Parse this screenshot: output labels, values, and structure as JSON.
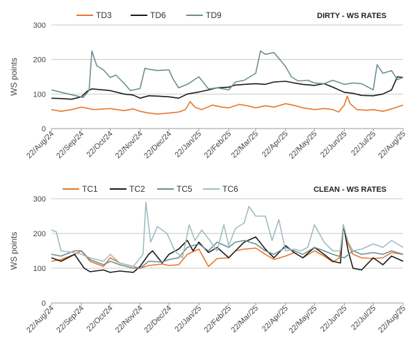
{
  "chart_data": [
    {
      "type": "line",
      "title": "DIRTY - WS RATES",
      "ylabel": "WS points",
      "ylim": [
        0,
        300
      ],
      "yticks": [
        0,
        100,
        200,
        300
      ],
      "xlim": [
        "2024-08-22",
        "2025-08-22"
      ],
      "xticks": [
        "22/Aug/24",
        "22/Sep/24",
        "22/Oct/24",
        "22/Nov/24",
        "22/Dec/24",
        "22/Jan/25",
        "22/Feb/25",
        "22/Mar/25",
        "22/Apr/25",
        "22/May/25",
        "22/Jun/25",
        "22/Jul/25",
        "22/Aug/25"
      ],
      "grid": true,
      "legend": "top-left",
      "series": [
        {
          "name": "TD3",
          "color": "#e8762c",
          "x": [
            "2024-08-22",
            "2024-09-01",
            "2024-09-12",
            "2024-09-22",
            "2024-10-05",
            "2024-10-22",
            "2024-11-05",
            "2024-11-15",
            "2024-11-22",
            "2024-12-01",
            "2024-12-10",
            "2024-12-22",
            "2025-01-01",
            "2025-01-08",
            "2025-01-13",
            "2025-01-18",
            "2025-01-25",
            "2025-02-05",
            "2025-02-15",
            "2025-02-22",
            "2025-03-05",
            "2025-03-15",
            "2025-03-22",
            "2025-04-01",
            "2025-04-10",
            "2025-04-22",
            "2025-05-01",
            "2025-05-10",
            "2025-05-22",
            "2025-06-01",
            "2025-06-10",
            "2025-06-16",
            "2025-06-22",
            "2025-06-25",
            "2025-06-28",
            "2025-07-05",
            "2025-07-15",
            "2025-07-22",
            "2025-08-01",
            "2025-08-10",
            "2025-08-22"
          ],
          "values": [
            55,
            50,
            55,
            62,
            55,
            58,
            52,
            57,
            50,
            45,
            42,
            45,
            48,
            55,
            78,
            62,
            55,
            68,
            62,
            60,
            70,
            65,
            60,
            66,
            62,
            72,
            67,
            60,
            55,
            58,
            55,
            48,
            68,
            94,
            72,
            55,
            53,
            55,
            50,
            57,
            68
          ]
        },
        {
          "name": "TD6",
          "color": "#1a1a1a",
          "x": [
            "2024-08-22",
            "2024-09-01",
            "2024-09-12",
            "2024-09-22",
            "2024-09-28",
            "2024-10-03",
            "2024-10-15",
            "2024-10-22",
            "2024-11-05",
            "2024-11-15",
            "2024-11-22",
            "2024-12-01",
            "2024-12-10",
            "2024-12-22",
            "2025-01-01",
            "2025-01-10",
            "2025-01-22",
            "2025-02-01",
            "2025-02-10",
            "2025-02-22",
            "2025-03-01",
            "2025-03-10",
            "2025-03-22",
            "2025-04-01",
            "2025-04-10",
            "2025-04-22",
            "2025-05-01",
            "2025-05-10",
            "2025-05-22",
            "2025-06-01",
            "2025-06-10",
            "2025-06-22",
            "2025-07-01",
            "2025-07-10",
            "2025-07-22",
            "2025-08-01",
            "2025-08-10",
            "2025-08-16",
            "2025-08-22"
          ],
          "values": [
            88,
            87,
            85,
            92,
            108,
            115,
            112,
            110,
            100,
            97,
            88,
            95,
            94,
            92,
            88,
            100,
            106,
            112,
            118,
            120,
            126,
            128,
            130,
            128,
            135,
            137,
            132,
            128,
            125,
            130,
            120,
            105,
            102,
            96,
            95,
            100,
            112,
            150,
            148
          ]
        },
        {
          "name": "TD9",
          "color": "#6d8e91",
          "x": [
            "2024-08-22",
            "2024-09-01",
            "2024-09-12",
            "2024-09-24",
            "2024-09-30",
            "2024-10-03",
            "2024-10-08",
            "2024-10-15",
            "2024-10-22",
            "2024-10-28",
            "2024-11-05",
            "2024-11-12",
            "2024-11-22",
            "2024-11-27",
            "2024-12-01",
            "2024-12-10",
            "2024-12-22",
            "2024-12-26",
            "2025-01-01",
            "2025-01-10",
            "2025-01-22",
            "2025-02-01",
            "2025-02-10",
            "2025-02-22",
            "2025-03-01",
            "2025-03-10",
            "2025-03-22",
            "2025-03-27",
            "2025-04-01",
            "2025-04-10",
            "2025-04-22",
            "2025-04-28",
            "2025-05-05",
            "2025-05-15",
            "2025-05-22",
            "2025-06-01",
            "2025-06-10",
            "2025-06-22",
            "2025-07-01",
            "2025-07-10",
            "2025-07-22",
            "2025-07-26",
            "2025-08-01",
            "2025-08-10",
            "2025-08-16",
            "2025-08-22"
          ],
          "values": [
            112,
            105,
            98,
            90,
            110,
            225,
            182,
            170,
            148,
            155,
            132,
            110,
            116,
            175,
            172,
            168,
            170,
            145,
            118,
            128,
            150,
            115,
            118,
            112,
            135,
            140,
            160,
            225,
            215,
            220,
            180,
            150,
            138,
            140,
            132,
            130,
            140,
            128,
            132,
            130,
            112,
            185,
            160,
            168,
            142,
            148
          ]
        }
      ]
    },
    {
      "type": "line",
      "title": "CLEAN - WS RATES",
      "ylabel": "WS points",
      "ylim": [
        0,
        300
      ],
      "yticks": [
        0,
        100,
        200,
        300
      ],
      "xlim": [
        "2024-08-22",
        "2025-08-22"
      ],
      "xticks": [
        "22/Aug/24",
        "22/Sep/24",
        "22/Oct/24",
        "22/Nov/24",
        "22/Dec/24",
        "22/Jan/25",
        "22/Feb/25",
        "22/Mar/25",
        "22/Apr/25",
        "22/May/25",
        "22/Jun/25",
        "22/Jul/25",
        "22/Aug/25"
      ],
      "grid": true,
      "legend": "top-left",
      "series": [
        {
          "name": "TC1",
          "color": "#e8762c",
          "x": [
            "2024-08-22",
            "2024-09-01",
            "2024-09-15",
            "2024-09-22",
            "2024-10-01",
            "2024-10-15",
            "2024-10-22",
            "2024-11-01",
            "2024-11-15",
            "2024-11-22",
            "2024-12-01",
            "2024-12-15",
            "2024-12-22",
            "2025-01-01",
            "2025-01-10",
            "2025-01-22",
            "2025-02-01",
            "2025-02-10",
            "2025-02-22",
            "2025-03-01",
            "2025-03-10",
            "2025-03-22",
            "2025-04-01",
            "2025-04-10",
            "2025-04-22",
            "2025-05-01",
            "2025-05-10",
            "2025-05-22",
            "2025-06-01",
            "2025-06-10",
            "2025-06-17",
            "2025-06-21",
            "2025-06-26",
            "2025-07-01",
            "2025-07-10",
            "2025-07-22",
            "2025-08-01",
            "2025-08-10",
            "2025-08-22"
          ],
          "values": [
            120,
            125,
            140,
            150,
            120,
            105,
            130,
            115,
            105,
            100,
            108,
            112,
            108,
            110,
            140,
            155,
            105,
            128,
            130,
            150,
            155,
            158,
            140,
            125,
            135,
            145,
            130,
            150,
            135,
            118,
            130,
            220,
            170,
            140,
            130,
            128,
            130,
            145,
            140
          ]
        },
        {
          "name": "TC2",
          "color": "#1a1a1a",
          "x": [
            "2024-08-22",
            "2024-09-01",
            "2024-09-15",
            "2024-09-25",
            "2024-10-01",
            "2024-10-15",
            "2024-10-22",
            "2024-11-01",
            "2024-11-15",
            "2024-11-22",
            "2024-12-01",
            "2024-12-05",
            "2024-12-15",
            "2024-12-22",
            "2025-01-01",
            "2025-01-10",
            "2025-01-16",
            "2025-01-22",
            "2025-02-01",
            "2025-02-10",
            "2025-02-22",
            "2025-03-01",
            "2025-03-10",
            "2025-03-22",
            "2025-04-01",
            "2025-04-10",
            "2025-04-22",
            "2025-05-01",
            "2025-05-10",
            "2025-05-22",
            "2025-06-01",
            "2025-06-10",
            "2025-06-18",
            "2025-06-21",
            "2025-06-26",
            "2025-07-01",
            "2025-07-10",
            "2025-07-22",
            "2025-08-01",
            "2025-08-10",
            "2025-08-22"
          ],
          "values": [
            130,
            120,
            140,
            100,
            90,
            95,
            88,
            92,
            88,
            105,
            140,
            150,
            115,
            140,
            155,
            180,
            150,
            175,
            145,
            160,
            130,
            150,
            175,
            190,
            155,
            130,
            165,
            145,
            130,
            160,
            140,
            120,
            115,
            225,
            150,
            100,
            95,
            130,
            110,
            135,
            120
          ]
        },
        {
          "name": "TC5",
          "color": "#6d8e91",
          "x": [
            "2024-08-22",
            "2024-09-01",
            "2024-09-15",
            "2024-09-22",
            "2024-10-01",
            "2024-10-15",
            "2024-10-22",
            "2024-11-01",
            "2024-11-15",
            "2024-11-22",
            "2024-12-01",
            "2024-12-15",
            "2024-12-22",
            "2025-01-01",
            "2025-01-10",
            "2025-01-22",
            "2025-02-01",
            "2025-02-10",
            "2025-02-22",
            "2025-03-01",
            "2025-03-10",
            "2025-03-22",
            "2025-04-01",
            "2025-04-10",
            "2025-04-22",
            "2025-05-01",
            "2025-05-10",
            "2025-05-22",
            "2025-06-01",
            "2025-06-10",
            "2025-06-22",
            "2025-07-01",
            "2025-07-10",
            "2025-07-22",
            "2025-08-01",
            "2025-08-10",
            "2025-08-22"
          ],
          "values": [
            140,
            135,
            150,
            150,
            125,
            110,
            120,
            110,
            100,
            100,
            120,
            118,
            125,
            130,
            160,
            170,
            150,
            175,
            160,
            175,
            180,
            170,
            150,
            140,
            160,
            150,
            140,
            160,
            150,
            140,
            130,
            150,
            140,
            145,
            140,
            150,
            140
          ]
        },
        {
          "name": "TC6",
          "color": "#9fbdbe",
          "x": [
            "2024-08-22",
            "2024-08-27",
            "2024-09-01",
            "2024-09-15",
            "2024-09-22",
            "2024-10-01",
            "2024-10-15",
            "2024-10-22",
            "2024-11-01",
            "2024-11-15",
            "2024-11-25",
            "2024-11-28",
            "2024-12-03",
            "2024-12-10",
            "2024-12-20",
            "2024-12-28",
            "2025-01-05",
            "2025-01-12",
            "2025-01-18",
            "2025-01-25",
            "2025-02-01",
            "2025-02-10",
            "2025-02-17",
            "2025-02-22",
            "2025-03-01",
            "2025-03-10",
            "2025-03-15",
            "2025-03-22",
            "2025-04-01",
            "2025-04-08",
            "2025-04-15",
            "2025-04-22",
            "2025-05-01",
            "2025-05-08",
            "2025-05-15",
            "2025-05-22",
            "2025-06-01",
            "2025-06-10",
            "2025-06-18",
            "2025-06-21",
            "2025-06-26",
            "2025-07-01",
            "2025-07-10",
            "2025-07-22",
            "2025-08-01",
            "2025-08-10",
            "2025-08-22"
          ],
          "values": [
            210,
            205,
            150,
            145,
            140,
            130,
            120,
            140,
            115,
            105,
            140,
            290,
            175,
            220,
            200,
            150,
            130,
            225,
            180,
            210,
            185,
            150,
            225,
            165,
            215,
            230,
            278,
            250,
            250,
            180,
            240,
            150,
            155,
            150,
            160,
            225,
            175,
            150,
            150,
            225,
            175,
            150,
            155,
            170,
            160,
            180,
            160
          ]
        }
      ]
    }
  ]
}
